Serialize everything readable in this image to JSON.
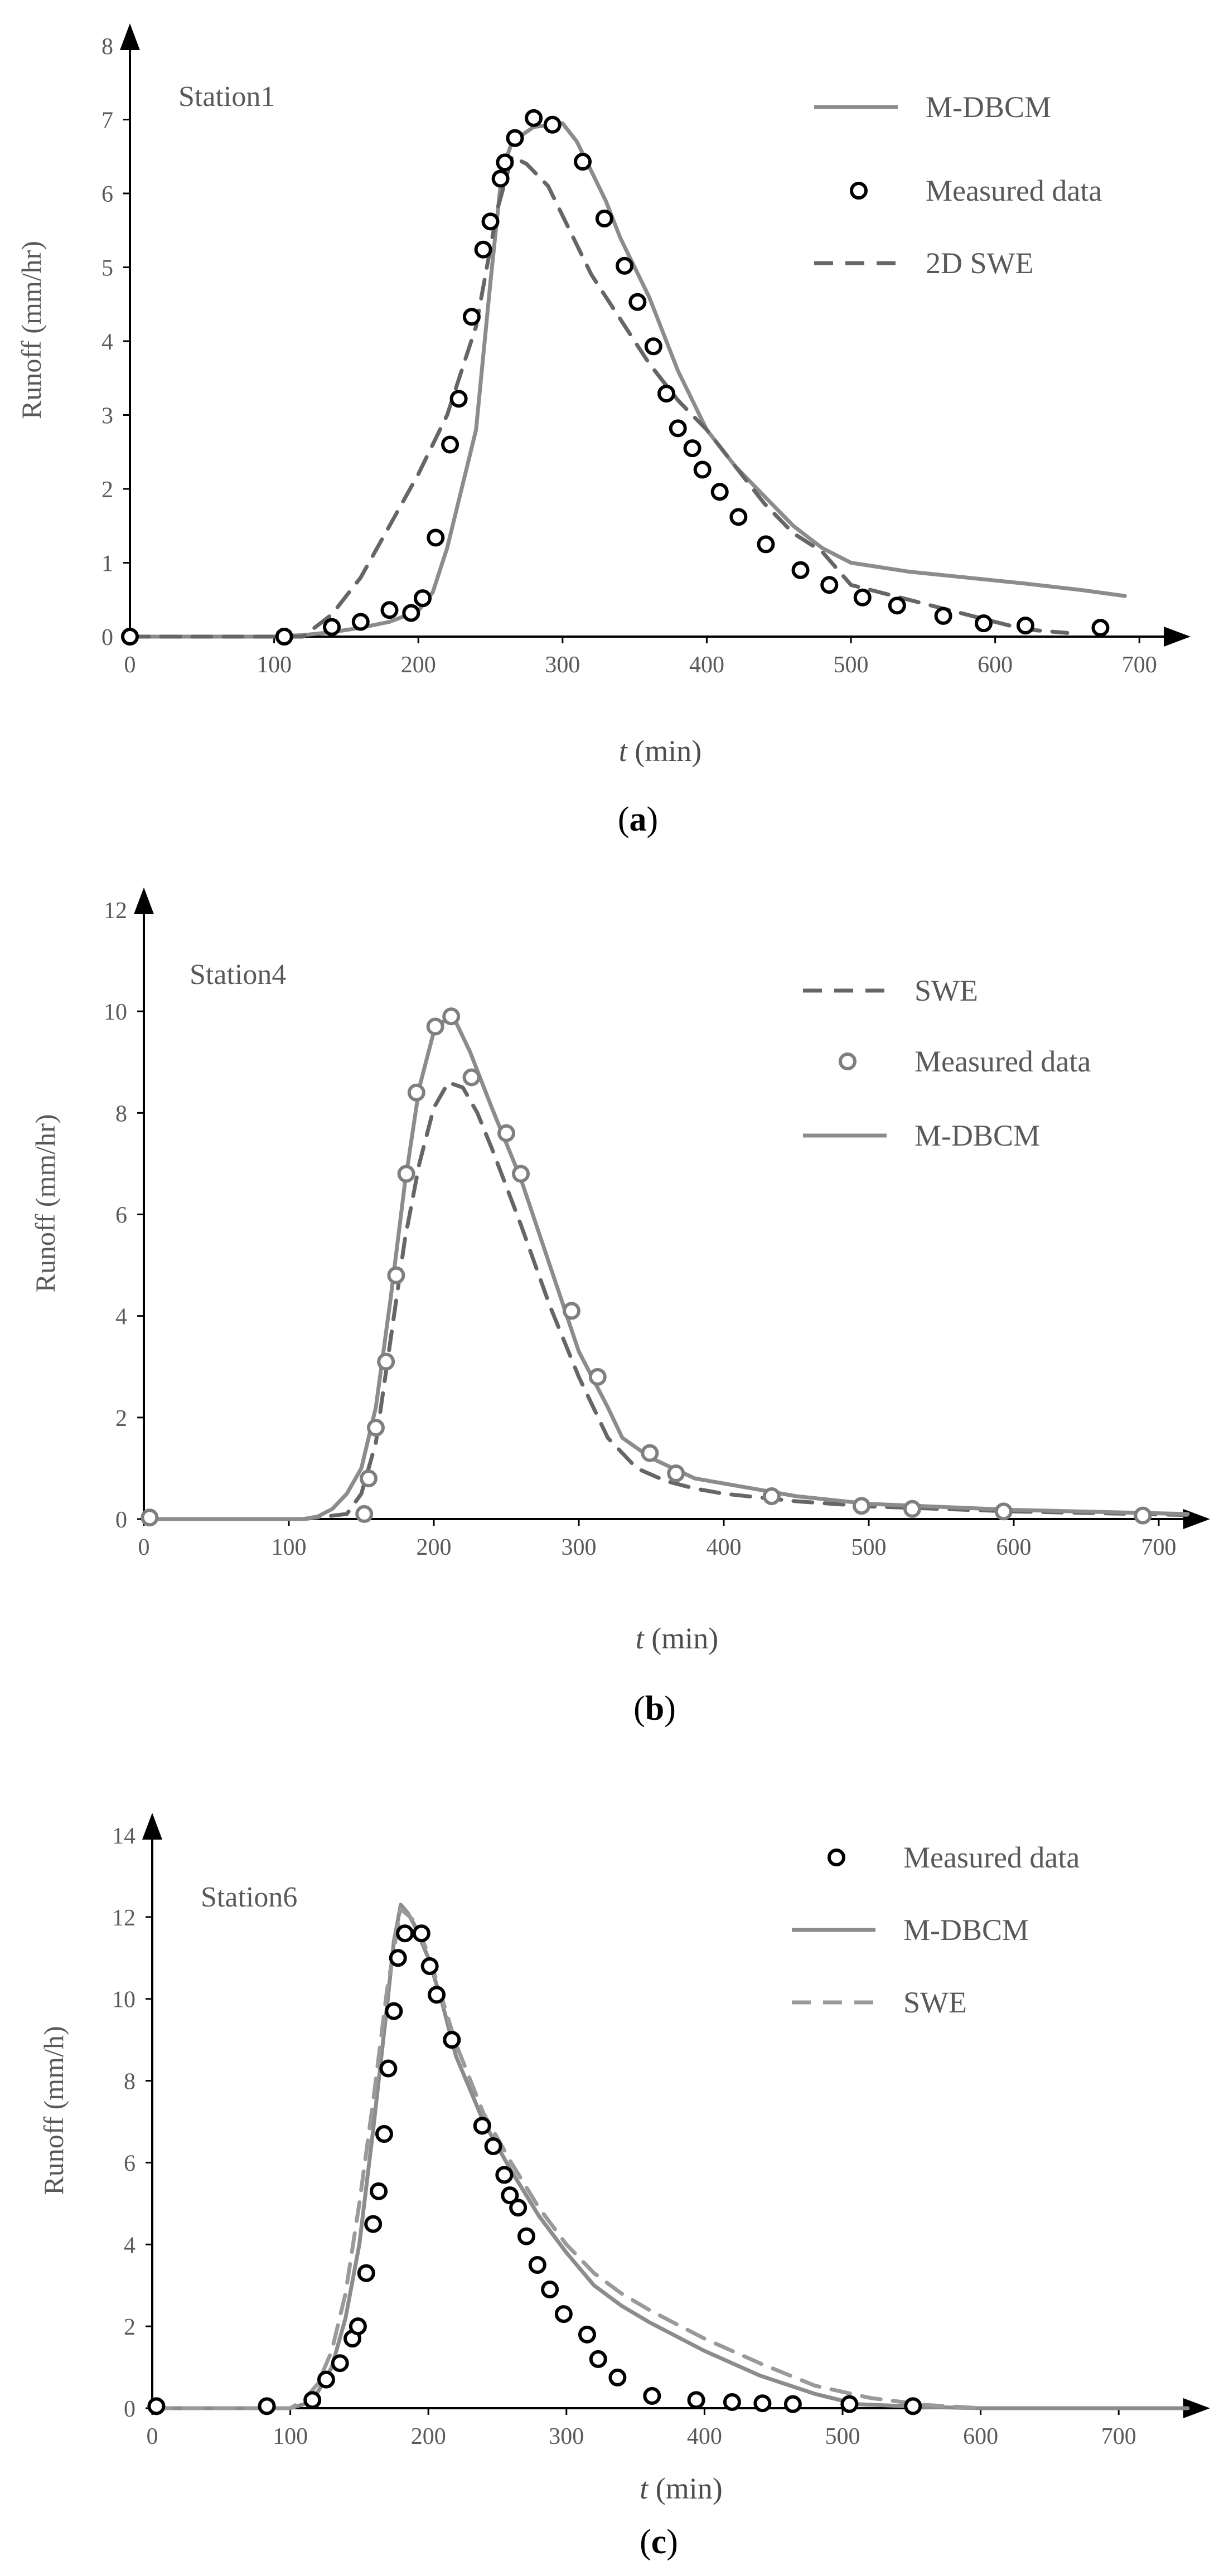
{
  "colors": {
    "axis": "#000000",
    "model": "#8c8c8c",
    "swe": "#666666",
    "swe_light": "#9a9a9a",
    "marker_dark": "#000000",
    "marker_grey": "#7f7f7f",
    "text": "#595959"
  },
  "chart_data": [
    {
      "type": "line",
      "caption": "a",
      "station": "Station1",
      "ylabel": "Runoff (mm/hr)",
      "xlabel_var": "t",
      "xlabel_unit": " (min)",
      "xlim": [
        0,
        720
      ],
      "ylim": [
        0,
        8
      ],
      "xticks": [
        0,
        100,
        200,
        300,
        400,
        500,
        600,
        700
      ],
      "yticks": [
        0,
        1,
        2,
        3,
        4,
        5,
        6,
        7,
        8
      ],
      "marker_color": "#000000",
      "legend": [
        {
          "label": "M-DBCM",
          "kind": "solid"
        },
        {
          "label": "Measured data",
          "kind": "marker"
        },
        {
          "label": "2D SWE",
          "kind": "dashed"
        }
      ],
      "series": [
        {
          "name": "M-DBCM",
          "style": "solid",
          "color": "#8c8c8c",
          "x": [
            0,
            100,
            120,
            140,
            160,
            180,
            200,
            210,
            220,
            230,
            240,
            250,
            258,
            265,
            280,
            300,
            310,
            320,
            330,
            340,
            350,
            360,
            370,
            380,
            390,
            400,
            420,
            440,
            460,
            480,
            500,
            540,
            580,
            620,
            660,
            690
          ],
          "y": [
            0,
            0,
            0.02,
            0.06,
            0.12,
            0.2,
            0.35,
            0.6,
            1.2,
            2.0,
            2.8,
            4.8,
            6.3,
            6.7,
            6.9,
            6.95,
            6.7,
            6.3,
            5.9,
            5.4,
            5.0,
            4.6,
            4.1,
            3.6,
            3.2,
            2.8,
            2.3,
            1.9,
            1.5,
            1.2,
            1.0,
            0.88,
            0.8,
            0.72,
            0.63,
            0.55
          ]
        },
        {
          "name": "2D SWE",
          "style": "dashed",
          "color": "#666666",
          "x": [
            0,
            120,
            140,
            160,
            180,
            200,
            220,
            240,
            255,
            265,
            275,
            290,
            300,
            320,
            340,
            360,
            380,
            400,
            420,
            440,
            460,
            480,
            500,
            540,
            580,
            620,
            650
          ],
          "y": [
            0,
            0,
            0.3,
            0.8,
            1.5,
            2.2,
            3.0,
            4.2,
            5.8,
            6.5,
            6.4,
            6.1,
            5.7,
            4.9,
            4.3,
            3.7,
            3.2,
            2.8,
            2.3,
            1.8,
            1.4,
            1.15,
            0.7,
            0.5,
            0.3,
            0.1,
            0.05
          ]
        }
      ],
      "measured": {
        "name": "Measured data",
        "x": [
          0,
          107,
          140,
          160,
          180,
          195,
          203,
          212,
          222,
          228,
          237,
          245,
          250,
          257,
          260,
          267,
          280,
          293,
          314,
          329,
          343,
          352,
          363,
          372,
          380,
          390,
          397,
          409,
          422,
          441,
          465,
          485,
          508,
          532,
          564,
          592,
          621,
          673
        ],
        "y": [
          0,
          0,
          0.13,
          0.2,
          0.36,
          0.32,
          0.52,
          1.34,
          2.6,
          3.22,
          4.33,
          5.24,
          5.62,
          6.2,
          6.42,
          6.75,
          7.02,
          6.93,
          6.43,
          5.66,
          5.02,
          4.53,
          3.93,
          3.29,
          2.82,
          2.55,
          2.26,
          1.96,
          1.62,
          1.25,
          0.9,
          0.7,
          0.53,
          0.42,
          0.28,
          0.18,
          0.15,
          0.12
        ]
      }
    },
    {
      "type": "line",
      "caption": "b",
      "station": "Station4",
      "ylabel": "Runoff (mm/hr)",
      "xlabel_var": "t",
      "xlabel_unit": " (min)",
      "xlim": [
        0,
        720
      ],
      "ylim": [
        0,
        12
      ],
      "xticks": [
        0,
        100,
        200,
        300,
        400,
        500,
        600,
        700
      ],
      "yticks": [
        0,
        2,
        4,
        6,
        8,
        10,
        12
      ],
      "marker_color": "#7f7f7f",
      "legend": [
        {
          "label": "SWE",
          "kind": "dashed"
        },
        {
          "label": "Measured data",
          "kind": "marker"
        },
        {
          "label": "M-DBCM",
          "kind": "solid"
        }
      ],
      "series": [
        {
          "name": "SWE",
          "style": "dashed",
          "color": "#666666",
          "x": [
            0,
            110,
            140,
            150,
            160,
            170,
            180,
            190,
            200,
            210,
            220,
            230,
            240,
            260,
            280,
            300,
            320,
            340,
            360,
            380,
            400,
            450,
            500,
            600,
            720
          ],
          "y": [
            0,
            0,
            0.1,
            0.5,
            1.5,
            3.5,
            5.5,
            7.0,
            8.1,
            8.6,
            8.5,
            8.0,
            7.3,
            5.8,
            4.2,
            2.8,
            1.6,
            1.0,
            0.75,
            0.6,
            0.5,
            0.35,
            0.25,
            0.15,
            0.08
          ]
        },
        {
          "name": "M-DBCM",
          "style": "solid",
          "color": "#8c8c8c",
          "x": [
            0,
            110,
            120,
            130,
            140,
            150,
            160,
            170,
            180,
            190,
            200,
            210,
            215,
            225,
            240,
            260,
            280,
            300,
            320,
            330,
            350,
            380,
            400,
            450,
            500,
            600,
            720
          ],
          "y": [
            0,
            0,
            0.05,
            0.2,
            0.5,
            1.0,
            2.2,
            4.3,
            6.6,
            8.5,
            9.6,
            9.9,
            9.8,
            9.2,
            8.1,
            6.7,
            5.0,
            3.3,
            2.2,
            1.6,
            1.2,
            0.8,
            0.7,
            0.45,
            0.3,
            0.18,
            0.1
          ]
        }
      ],
      "measured": {
        "name": "Measured data",
        "x": [
          4,
          152,
          155,
          160,
          167,
          174,
          181,
          188,
          201,
          212,
          226,
          250,
          260,
          295,
          313,
          349,
          367,
          433,
          495,
          530,
          593,
          689
        ],
        "y": [
          0.03,
          0.1,
          0.8,
          1.8,
          3.1,
          4.8,
          6.8,
          8.4,
          9.7,
          9.9,
          8.7,
          7.6,
          6.8,
          4.1,
          2.8,
          1.3,
          0.9,
          0.45,
          0.26,
          0.2,
          0.15,
          0.07
        ]
      }
    },
    {
      "type": "line",
      "caption": "c",
      "station": "Station6",
      "ylabel": "Runoff (mm/h)",
      "xlabel_var": "t",
      "xlabel_unit": " (min)",
      "xlim": [
        0,
        750
      ],
      "ylim": [
        0,
        14
      ],
      "xticks": [
        0,
        100,
        200,
        300,
        400,
        500,
        600,
        700
      ],
      "yticks": [
        0,
        2,
        4,
        6,
        8,
        10,
        12,
        14
      ],
      "marker_color": "#000000",
      "legend": [
        {
          "label": "Measured data",
          "kind": "marker"
        },
        {
          "label": "M-DBCM",
          "kind": "solid"
        },
        {
          "label": "SWE",
          "kind": "dashed"
        }
      ],
      "series": [
        {
          "name": "M-DBCM",
          "style": "solid",
          "color": "#8c8c8c",
          "x": [
            0,
            100,
            110,
            120,
            130,
            140,
            150,
            160,
            170,
            175,
            180,
            185,
            190,
            200,
            210,
            220,
            240,
            260,
            280,
            300,
            320,
            340,
            360,
            400,
            440,
            480,
            510,
            560,
            600,
            750
          ],
          "y": [
            0,
            0,
            0.1,
            0.4,
            1.0,
            2.2,
            4.0,
            6.8,
            9.8,
            11.4,
            12.3,
            12.1,
            11.8,
            11.0,
            9.9,
            8.6,
            7.0,
            5.8,
            4.7,
            3.8,
            3.0,
            2.5,
            2.1,
            1.4,
            0.8,
            0.35,
            0.1,
            0.03,
            0,
            0
          ]
        },
        {
          "name": "SWE",
          "style": "dashed",
          "color": "#9a9a9a",
          "x": [
            0,
            100,
            110,
            120,
            130,
            140,
            150,
            160,
            170,
            180,
            190,
            200,
            220,
            240,
            260,
            280,
            300,
            320,
            340,
            360,
            400,
            440,
            480,
            520,
            560,
            600
          ],
          "y": [
            0,
            0,
            0.2,
            0.6,
            1.4,
            2.8,
            5.0,
            7.5,
            10.2,
            12.2,
            11.9,
            11.1,
            8.9,
            7.2,
            6.0,
            4.9,
            4.0,
            3.3,
            2.8,
            2.4,
            1.7,
            1.1,
            0.55,
            0.25,
            0.08,
            0
          ]
        }
      ],
      "measured": {
        "name": "Measured data",
        "x": [
          3,
          83,
          116,
          126,
          136,
          145,
          149,
          155,
          160,
          164,
          168,
          171,
          175,
          178,
          183,
          195,
          201,
          206,
          217,
          239,
          247,
          255,
          259,
          265,
          271,
          279,
          288,
          298,
          315,
          323,
          337,
          362,
          394,
          420,
          442,
          464,
          505,
          551
        ],
        "y": [
          0.05,
          0.05,
          0.2,
          0.7,
          1.1,
          1.7,
          2.0,
          3.3,
          4.5,
          5.3,
          6.7,
          8.3,
          9.7,
          11.0,
          11.6,
          11.6,
          10.8,
          10.1,
          9.0,
          6.9,
          6.4,
          5.7,
          5.2,
          4.9,
          4.2,
          3.5,
          2.9,
          2.3,
          1.8,
          1.2,
          0.75,
          0.3,
          0.2,
          0.15,
          0.12,
          0.1,
          0.1,
          0.05
        ]
      }
    }
  ]
}
